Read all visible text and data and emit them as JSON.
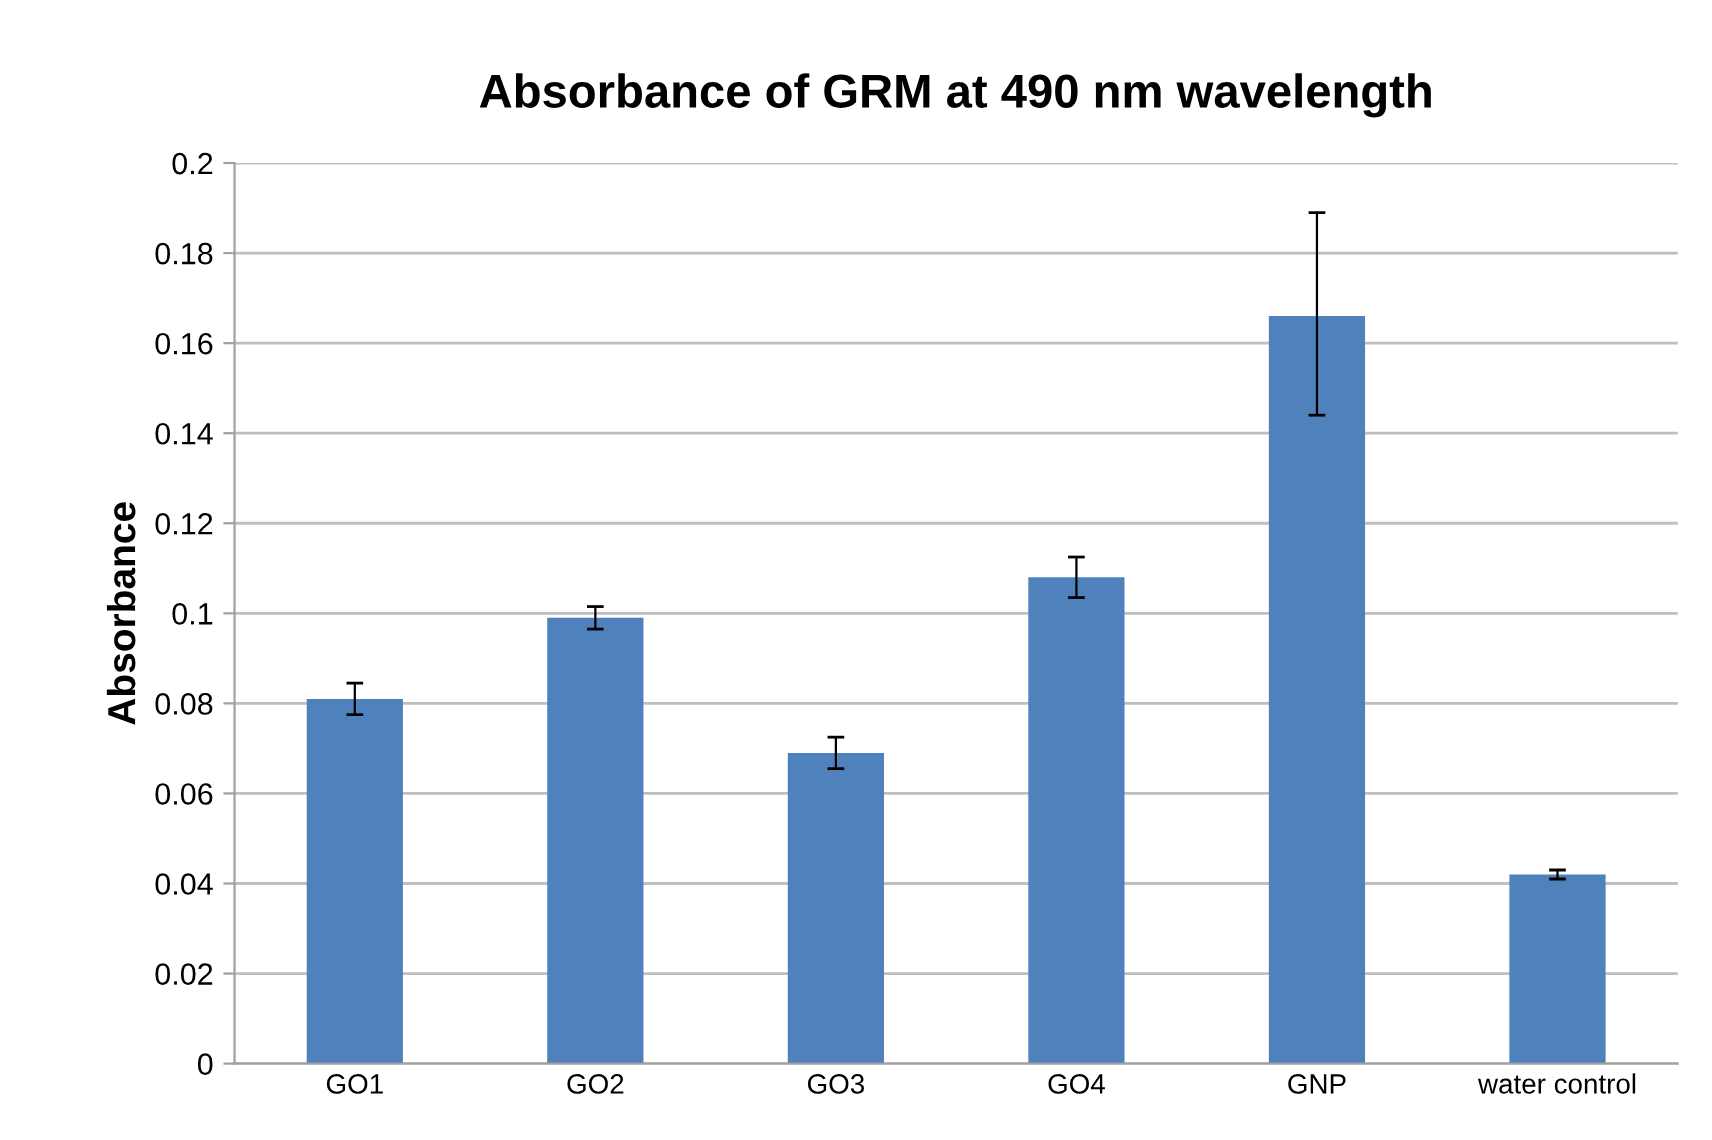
{
  "chart_data": {
    "type": "bar",
    "title": "Absorbance of GRM at 490 nm wavelength",
    "ylabel": "Absorbance",
    "categories": [
      "GO1",
      "GO2",
      "GO3",
      "GO4",
      "GNP",
      "water control"
    ],
    "values": [
      0.081,
      0.099,
      0.069,
      0.108,
      0.166,
      0.042
    ],
    "errors": [
      0.0035,
      0.0025,
      0.0035,
      0.0045,
      [
        0.144,
        0.189
      ],
      0.001
    ],
    "color": "#4f81bd",
    "ylim": [
      0,
      0.2
    ],
    "yticks": [
      0,
      0.02,
      0.04,
      0.06,
      0.08,
      0.1,
      0.12,
      0.14,
      0.16,
      0.18,
      0.2
    ],
    "grid": "y"
  }
}
